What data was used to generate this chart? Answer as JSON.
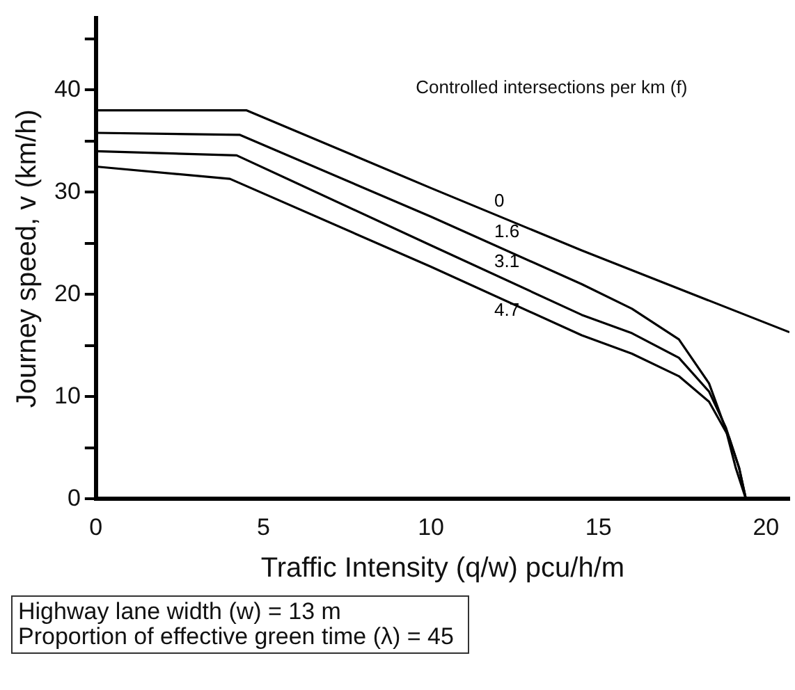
{
  "chart_data": {
    "type": "line",
    "xlabel": "Traffic Intensity (q/w) pcu/h/m",
    "ylabel": "Journey speed, v (km/h)",
    "legend_title": "Controlled intersections per km (f)",
    "xlim": [
      0,
      20.7
    ],
    "xticks": [
      0,
      5,
      10,
      15,
      20
    ],
    "ylim": [
      0,
      47
    ],
    "yticks": [
      0,
      {
        "value": 5,
        "label": null
      },
      10,
      {
        "value": 15,
        "label": null
      },
      20,
      {
        "value": 25,
        "label": null
      },
      30,
      {
        "value": 35,
        "label": null
      },
      40,
      {
        "value": 45,
        "label": null
      }
    ],
    "grid": false,
    "legend": false,
    "marker": "none",
    "line_style": "solid",
    "series": [
      {
        "name": "0",
        "color": "#000000",
        "x": [
          0,
          4.5,
          10,
          14.5,
          20.7
        ],
        "values": [
          38,
          38,
          30.4,
          24.3,
          16.3
        ]
      },
      {
        "name": "1.6",
        "color": "#000000",
        "x": [
          0,
          4.3,
          10,
          14.5,
          16,
          17.4,
          18.3,
          18.8,
          19.1,
          19.4
        ],
        "values": [
          35.8,
          35.6,
          27.6,
          21,
          18.6,
          15.6,
          11.3,
          6.8,
          3,
          0
        ]
      },
      {
        "name": "3.1",
        "color": "#000000",
        "x": [
          0,
          4.2,
          10,
          14.5,
          16,
          17.4,
          18.3,
          18.8,
          19.2,
          19.4
        ],
        "values": [
          34,
          33.6,
          24.8,
          18,
          16.2,
          13.8,
          10.5,
          7,
          3,
          0
        ]
      },
      {
        "name": "4.7",
        "color": "#000000",
        "x": [
          0,
          4,
          10,
          14.5,
          16,
          17.4,
          18.3,
          18.9,
          19.2,
          19.4
        ],
        "values": [
          32.5,
          31.3,
          22.7,
          16,
          14.2,
          12,
          9.5,
          6,
          3,
          0
        ]
      }
    ],
    "annotations": [
      "Highway lane width (w) = 13 m",
      "Proportion of  effective green time (λ) =  45"
    ]
  }
}
